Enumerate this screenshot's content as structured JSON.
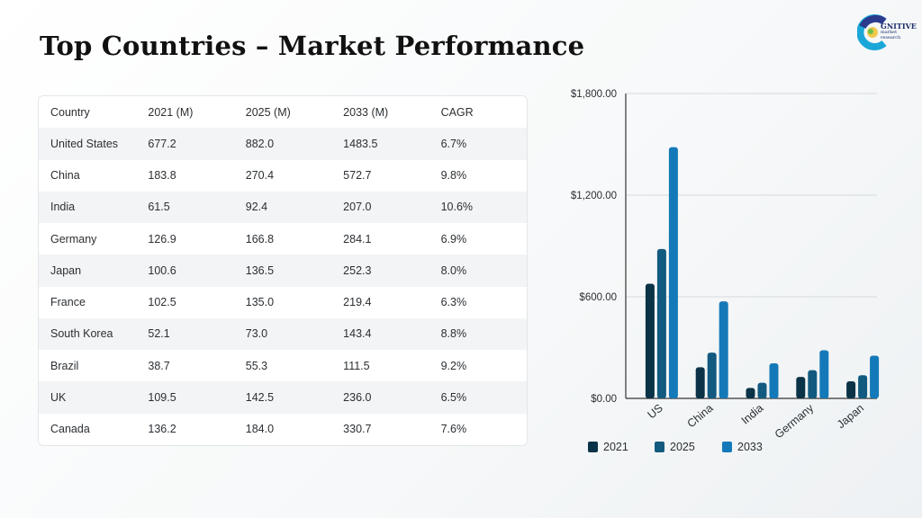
{
  "title": "Top Countries – Market Performance",
  "logo": {
    "main": "GNITIVE",
    "sub1": "market",
    "sub2": "research"
  },
  "table": {
    "headers": [
      "Country",
      "2021 (M)",
      "2025 (M)",
      "2033 (M)",
      "CAGR"
    ],
    "rows": [
      [
        "United States",
        "677.2",
        "882.0",
        "1483.5",
        "6.7%"
      ],
      [
        "China",
        "183.8",
        "270.4",
        "572.7",
        "9.8%"
      ],
      [
        "India",
        "61.5",
        "92.4",
        "207.0",
        "10.6%"
      ],
      [
        "Germany",
        "126.9",
        "166.8",
        "284.1",
        "6.9%"
      ],
      [
        "Japan",
        "100.6",
        "136.5",
        "252.3",
        "8.0%"
      ],
      [
        "France",
        "102.5",
        "135.0",
        "219.4",
        "6.3%"
      ],
      [
        "South Korea",
        "52.1",
        "73.0",
        "143.4",
        "8.8%"
      ],
      [
        "Brazil",
        "38.7",
        "55.3",
        "111.5",
        "9.2%"
      ],
      [
        "UK",
        "109.5",
        "142.5",
        "236.0",
        "6.5%"
      ],
      [
        "Canada",
        "136.2",
        "184.0",
        "330.7",
        "7.6%"
      ]
    ]
  },
  "chart_data": {
    "type": "bar",
    "categories": [
      "US",
      "China",
      "India",
      "Germany",
      "Japan"
    ],
    "series": [
      {
        "name": "2021",
        "values": [
          677.2,
          183.8,
          61.5,
          126.9,
          100.6
        ],
        "color": "#0b3347"
      },
      {
        "name": "2025",
        "values": [
          882.0,
          270.4,
          92.4,
          166.8,
          136.5
        ],
        "color": "#125a80"
      },
      {
        "name": "2033",
        "values": [
          1483.5,
          572.7,
          207.0,
          284.1,
          252.3
        ],
        "color": "#1479b8"
      }
    ],
    "yticks": [
      "$0.00",
      "$600.00",
      "$1,200.00",
      "$1,800.00"
    ],
    "ytick_values": [
      0,
      600,
      1200,
      1800
    ],
    "ylim": [
      0,
      1800
    ],
    "legend_position": "bottom",
    "grid": true
  }
}
